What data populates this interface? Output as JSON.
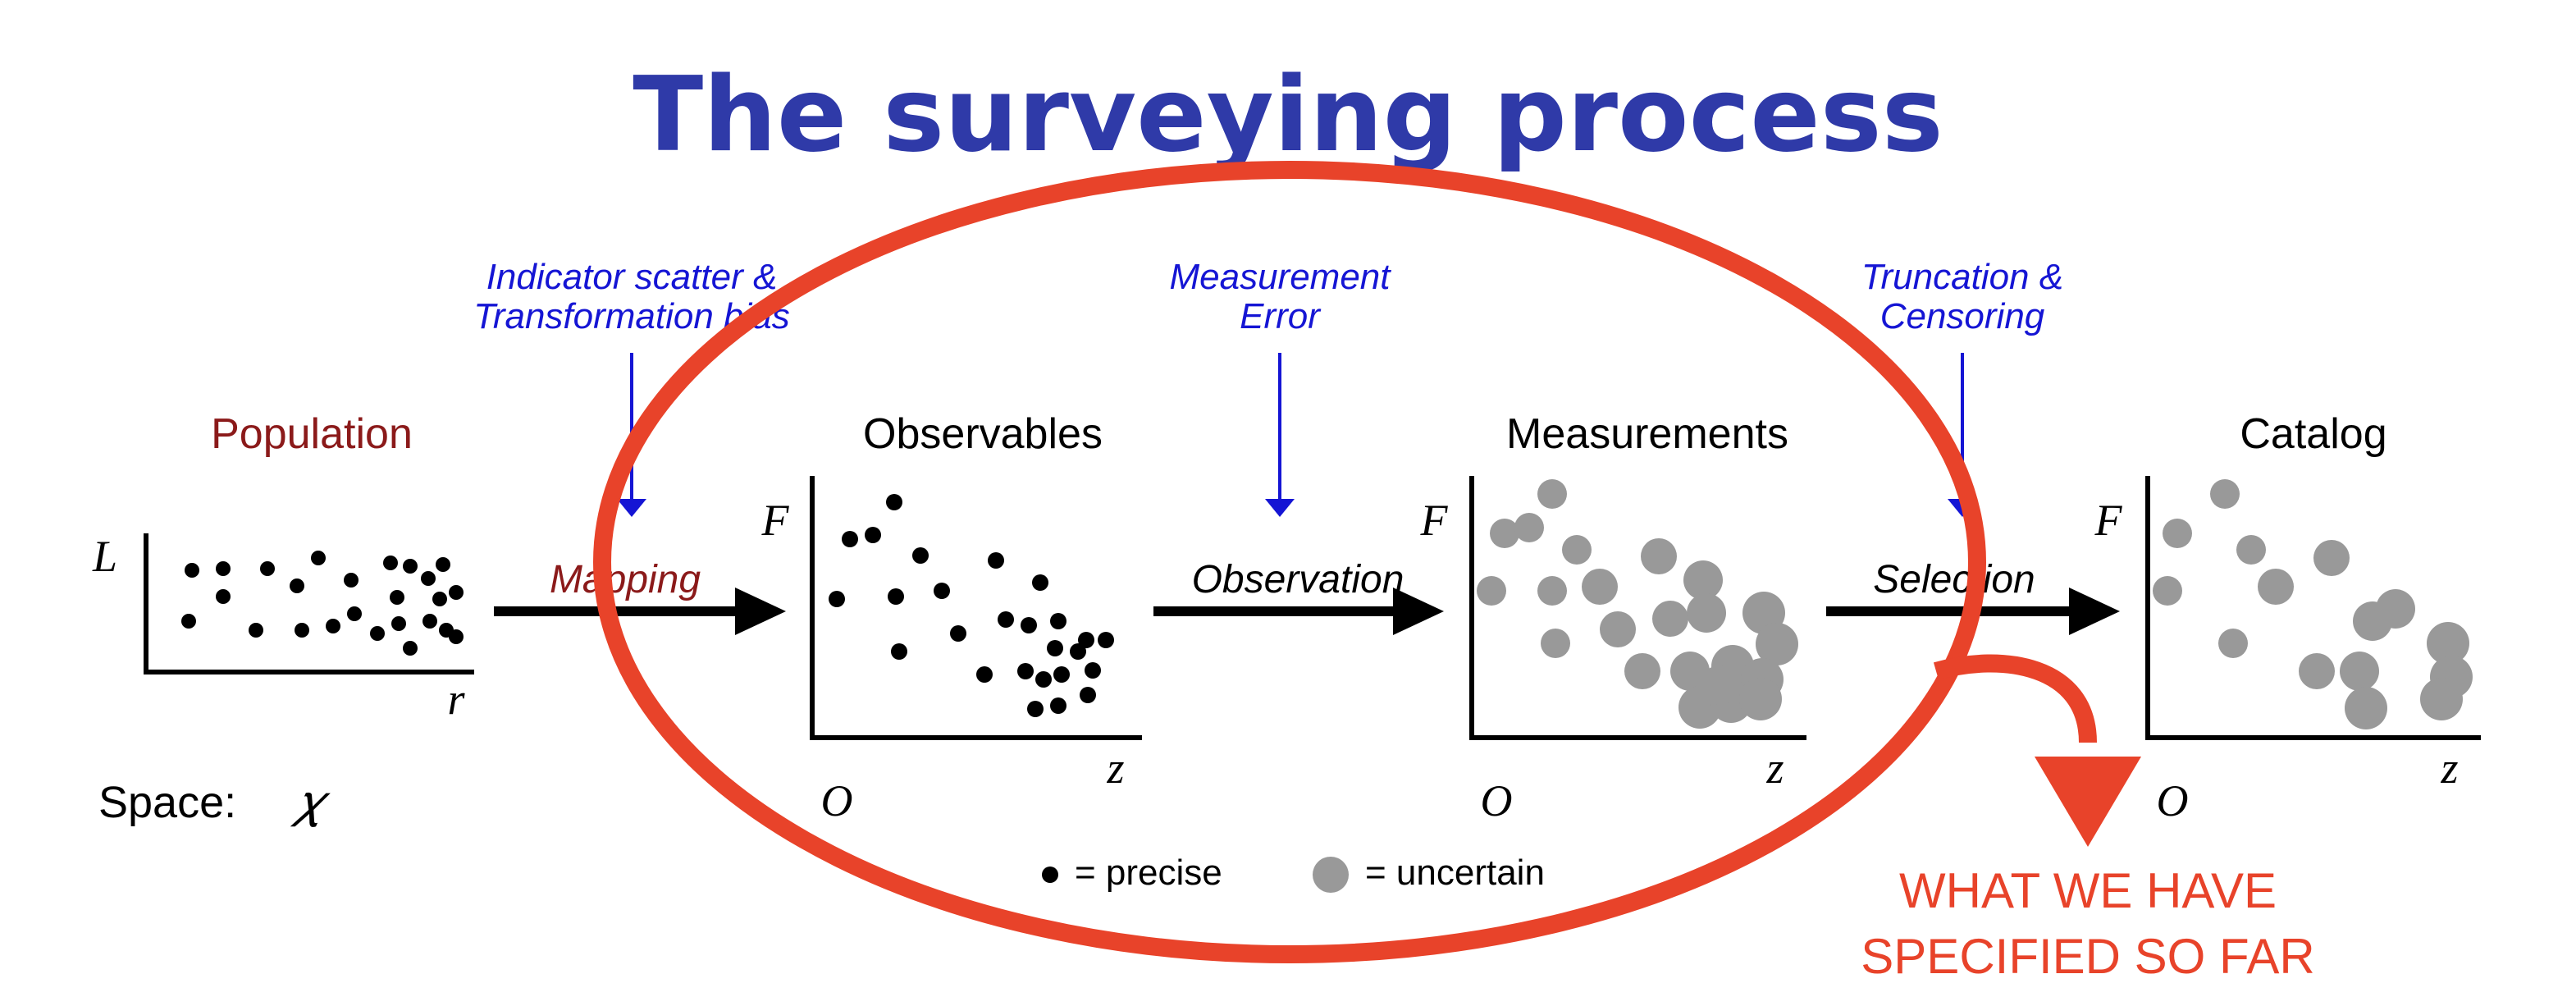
{
  "title": "The surveying process",
  "colors": {
    "title": "#2f3aa8",
    "stage_label": "#8b1a1a",
    "process_note": "#1515d4",
    "highlight": "#e8432a",
    "precise_dot": "#000000",
    "uncertain_dot": "#999999"
  },
  "stages": {
    "population": {
      "label": "Population",
      "y_axis": "L",
      "x_axis": "r",
      "space_label": "Space:",
      "space_symbol": "𝜒"
    },
    "observables": {
      "label": "Observables",
      "y_axis": "F",
      "x_axis": "z",
      "origin": "O"
    },
    "measurements": {
      "label": "Measurements",
      "y_axis": "F",
      "x_axis": "z",
      "origin": "O"
    },
    "catalog": {
      "label": "Catalog",
      "y_axis": "F",
      "x_axis": "z",
      "origin": "O"
    }
  },
  "transitions": {
    "mapping": {
      "label": "Mapping",
      "note_line1": "Indicator scatter &",
      "note_line2": "Transformation bias"
    },
    "observation": {
      "label": "Observation",
      "note_line1": "Measurement",
      "note_line2": "Error"
    },
    "selection": {
      "label": "Selection",
      "note_line1": "Truncation &",
      "note_line2": "Censoring"
    }
  },
  "legend": {
    "precise_label": "= precise",
    "uncertain_label": "= uncertain"
  },
  "callout": {
    "line1": "WHAT WE HAVE",
    "line2": "SPECIFIED SO FAR"
  }
}
